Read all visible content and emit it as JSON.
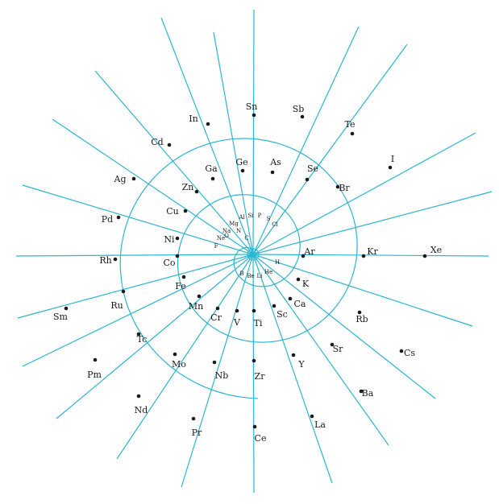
{
  "diagram": {
    "colors": {
      "lines": "#2bb6cf",
      "dots": "#1a1a1a",
      "background": "#ffffff"
    },
    "elements": {
      "Sn": "Sn",
      "Sb": "Sb",
      "In": "In",
      "Te": "Te",
      "Cd": "Cd",
      "I": "I",
      "Ag": "Ag",
      "Pd": "Pd",
      "Rh": "Rh",
      "Ru": "Ru",
      "Tc": "Tc",
      "Mo": "Mo",
      "Nb": "Nb",
      "Zr": "Zr",
      "Y": "Y",
      "Sr": "Sr",
      "Rb": "Rb",
      "Xe": "Xe",
      "Kr": "Kr",
      "Br": "Br",
      "Se": "Se",
      "As": "As",
      "Ge": "Ge",
      "Ga": "Ga",
      "Zn": "Zn",
      "Cu": "Cu",
      "Ni": "Ni",
      "Co": "Co",
      "Fe": "Fe",
      "Mn": "Mn",
      "Cr": "Cr",
      "V": "V",
      "Ti": "Ti",
      "Sc": "Sc",
      "Ca": "Ca",
      "K": "K",
      "Ar": "Ar",
      "Cs": "Cs",
      "Ba": "Ba",
      "La": "La",
      "Ce": "Ce",
      "Pr": "Pr",
      "Nd": "Nd",
      "Pm": "Pm",
      "Sm": "Sm",
      "Cl": "Cl",
      "S": "S",
      "P": "P",
      "Si": "Si",
      "Al": "Al",
      "Mg": "Mg",
      "Na": "Na",
      "Ne": "Ne",
      "F": "F",
      "O": "O",
      "N": "N",
      "C": "C",
      "B": "B",
      "Be": "Be",
      "Li": "Li",
      "He": "He",
      "H": "H"
    }
  }
}
